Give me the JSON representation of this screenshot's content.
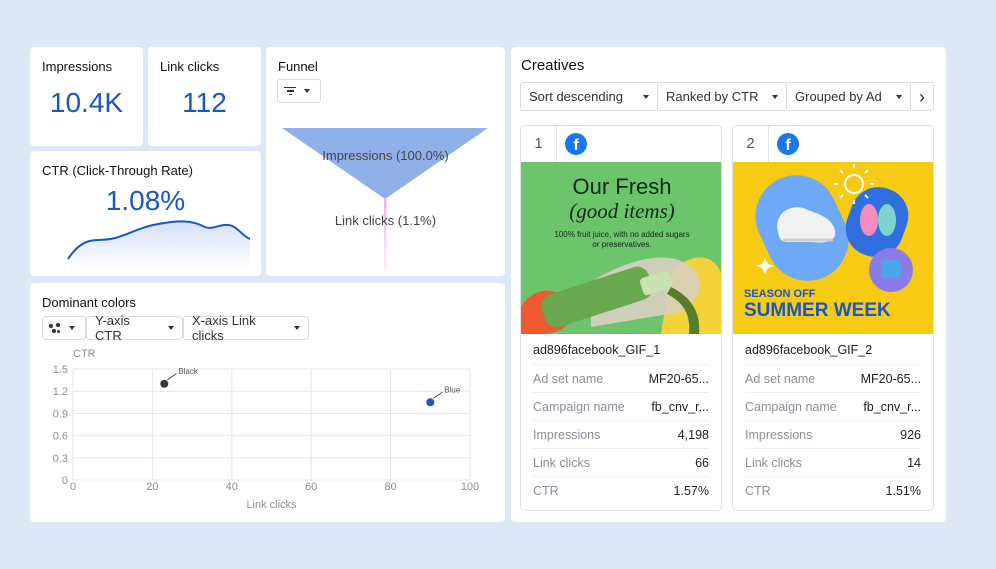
{
  "kpis": {
    "impressions": {
      "label": "Impressions",
      "value": "10.4K"
    },
    "link_clicks": {
      "label": "Link clicks",
      "value": "112"
    },
    "ctr": {
      "label": "CTR (Click-Through Rate)",
      "value": "1.08%"
    }
  },
  "funnel": {
    "title": "Funnel",
    "stages": [
      {
        "label": "Impressions (100.0%)",
        "percent": 100.0
      },
      {
        "label": "Link clicks (1.1%)",
        "percent": 1.1
      }
    ]
  },
  "dominant_colors": {
    "title": "Dominant colors",
    "controls": {
      "y_axis": "Y-axis CTR",
      "x_axis": "X-axis Link clicks"
    }
  },
  "chart_data": {
    "type": "scatter",
    "xlabel": "Link clicks",
    "ylabel": "CTR",
    "xlim": [
      0,
      100
    ],
    "ylim": [
      0,
      1.5
    ],
    "xticks": [
      "0",
      "20",
      "40",
      "60",
      "80",
      "100"
    ],
    "yticks": [
      "0",
      "0.3",
      "0.6",
      "0.9",
      "1.2",
      "1.5"
    ],
    "grid": true,
    "points": [
      {
        "label": "Black",
        "x": 23,
        "y": 1.3,
        "color": "#3a3a3a"
      },
      {
        "label": "Blue",
        "x": 90,
        "y": 1.05,
        "color": "#1a56c4"
      }
    ]
  },
  "creatives": {
    "title": "Creatives",
    "controls": {
      "sort": "Sort descending",
      "rank": "Ranked by CTR",
      "group": "Grouped by Ad"
    },
    "items": [
      {
        "index": "1",
        "name": "ad896facebook_GIF_1",
        "image": {
          "headline1": "Our Fresh",
          "headline2": "(good items)",
          "body1": "100% fruit juice, with no added sugars",
          "body2": "or preservatives."
        },
        "rows": [
          {
            "key": "Ad set name",
            "value": "MF20-65..."
          },
          {
            "key": "Campaign name",
            "value": "fb_cnv_r..."
          },
          {
            "key": "Impressions",
            "value": "4,198"
          },
          {
            "key": "Link clicks",
            "value": "66"
          },
          {
            "key": "CTR",
            "value": "1.57%"
          }
        ]
      },
      {
        "index": "2",
        "name": "ad896facebook_GIF_2",
        "image": {
          "line1": "SEASON OFF",
          "line2": "SUMMER WEEK"
        },
        "rows": [
          {
            "key": "Ad set name",
            "value": "MF20-65..."
          },
          {
            "key": "Campaign name",
            "value": "fb_cnv_r..."
          },
          {
            "key": "Impressions",
            "value": "926"
          },
          {
            "key": "Link clicks",
            "value": "14"
          },
          {
            "key": "CTR",
            "value": "1.51%"
          }
        ]
      }
    ]
  },
  "icons": {
    "facebook": "f",
    "next": "›"
  },
  "colors": {
    "accent": "#1a56c4",
    "funnel": "#8fb0e8",
    "background": "#dde7f5"
  }
}
